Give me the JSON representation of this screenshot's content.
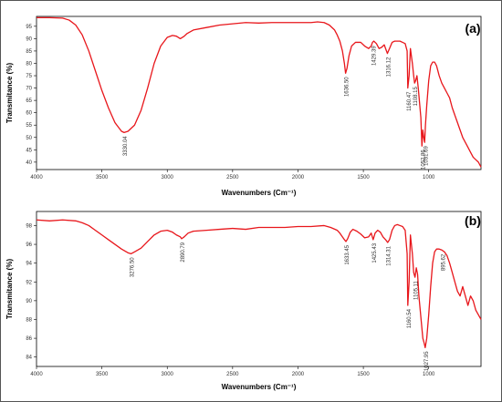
{
  "chart_data": [
    {
      "type": "line",
      "panel_label": "(a)",
      "xlabel": "Wavenumbers (Cm⁻¹)",
      "ylabel": "Transmitance (%)",
      "xlim": [
        4000,
        600
      ],
      "x_reversed": true,
      "ylim": [
        37,
        99
      ],
      "x_ticks": [
        4000,
        3500,
        3000,
        2500,
        2000,
        1500,
        1000
      ],
      "y_ticks": [
        40,
        45,
        50,
        55,
        60,
        65,
        70,
        75,
        80,
        85,
        90,
        95
      ],
      "grid": false,
      "color": "#e8161b",
      "series": [
        {
          "x": [
            4000,
            3900,
            3800,
            3750,
            3700,
            3650,
            3600,
            3550,
            3500,
            3450,
            3400,
            3350,
            3330,
            3300,
            3250,
            3200,
            3150,
            3100,
            3050,
            3000,
            2960,
            2930,
            2900,
            2870,
            2850,
            2800,
            2700,
            2600,
            2500,
            2400,
            2300,
            2200,
            2100,
            2000,
            1900,
            1850,
            1800,
            1760,
            1720,
            1700,
            1680,
            1660,
            1645,
            1636,
            1625,
            1610,
            1590,
            1560,
            1520,
            1490,
            1460,
            1440,
            1430,
            1420,
            1400,
            1380,
            1360,
            1340,
            1330,
            1316,
            1300,
            1280,
            1260,
            1240,
            1220,
            1200,
            1180,
            1165,
            1160,
            1150,
            1140,
            1125,
            1115,
            1108,
            1100,
            1090,
            1080,
            1070,
            1060,
            1052,
            1045,
            1038,
            1031,
            1025,
            1015,
            1000,
            985,
            970,
            955,
            940,
            920,
            900,
            880,
            860,
            840,
            820,
            800,
            780,
            760,
            740,
            720,
            700,
            680,
            660,
            640,
            620,
            600
          ],
          "y": [
            98.5,
            98.5,
            98.3,
            97.5,
            95.5,
            91.5,
            85,
            77,
            69,
            62,
            56,
            52.5,
            52,
            52.5,
            55,
            61,
            70,
            80,
            87,
            90.5,
            91.3,
            91,
            90,
            91,
            92,
            93.5,
            94.5,
            95.5,
            96,
            96.5,
            96.3,
            96.5,
            96.5,
            96.5,
            96.5,
            96.8,
            96.5,
            95.5,
            93.5,
            91.5,
            89,
            85,
            80,
            76,
            78,
            83,
            87,
            88.5,
            88.5,
            87,
            86,
            87,
            88.5,
            89,
            88,
            86,
            86.5,
            87.5,
            86,
            84,
            86,
            88.5,
            89,
            89,
            89,
            88.5,
            88,
            85,
            70,
            75,
            86,
            80,
            75,
            72,
            73,
            75,
            70,
            64,
            58,
            46.5,
            53,
            50,
            48,
            55,
            63,
            73,
            79,
            80.5,
            80.5,
            79,
            75,
            72,
            70,
            68,
            66,
            62,
            59,
            56,
            53,
            50,
            48,
            46,
            44,
            42,
            41,
            40,
            38
          ]
        }
      ],
      "annotations": [
        {
          "text": "3330.04",
          "x": 3330
        },
        {
          "text": "1636.50",
          "x": 1636
        },
        {
          "text": "1429.39",
          "x": 1429
        },
        {
          "text": "1316.12",
          "x": 1316
        },
        {
          "text": "1160.47",
          "x": 1160
        },
        {
          "text": "1108.15",
          "x": 1108
        },
        {
          "text": "1052.86",
          "x": 1052
        },
        {
          "text": "1031.69",
          "x": 1031
        }
      ]
    },
    {
      "type": "line",
      "panel_label": "(b)",
      "xlabel": "Wavenumbers (Cm⁻¹)",
      "ylabel": "Transmitance (%)",
      "xlim": [
        4000,
        600
      ],
      "x_reversed": true,
      "ylim": [
        83,
        99.5
      ],
      "x_ticks": [
        4000,
        3500,
        3000,
        2500,
        2000,
        1500,
        1000
      ],
      "y_ticks": [
        84,
        86,
        88,
        90,
        92,
        94,
        96,
        98
      ],
      "grid": false,
      "color": "#e8161b",
      "series": [
        {
          "x": [
            4000,
            3900,
            3800,
            3700,
            3650,
            3600,
            3550,
            3500,
            3450,
            3400,
            3350,
            3300,
            3276,
            3250,
            3200,
            3150,
            3100,
            3050,
            3000,
            2960,
            2930,
            2900,
            2890,
            2870,
            2840,
            2800,
            2700,
            2600,
            2500,
            2400,
            2300,
            2200,
            2100,
            2000,
            1900,
            1800,
            1750,
            1700,
            1680,
            1660,
            1645,
            1633,
            1620,
            1600,
            1580,
            1550,
            1520,
            1490,
            1460,
            1440,
            1425,
            1410,
            1390,
            1370,
            1350,
            1330,
            1314,
            1300,
            1280,
            1260,
            1240,
            1220,
            1200,
            1180,
            1165,
            1160,
            1150,
            1140,
            1125,
            1115,
            1105,
            1095,
            1085,
            1075,
            1065,
            1055,
            1045,
            1035,
            1027,
            1015,
            1000,
            985,
            970,
            955,
            940,
            920,
            900,
            880,
            860,
            840,
            820,
            800,
            780,
            760,
            740,
            720,
            700,
            680,
            660,
            640,
            620,
            600
          ],
          "y": [
            98.6,
            98.5,
            98.6,
            98.5,
            98.3,
            98,
            97.5,
            97,
            96.5,
            96,
            95.5,
            95.1,
            95,
            95.2,
            95.6,
            96.3,
            97,
            97.4,
            97.5,
            97.3,
            97,
            96.8,
            96.6,
            96.8,
            97.2,
            97.4,
            97.5,
            97.6,
            97.7,
            97.6,
            97.8,
            97.8,
            97.8,
            97.9,
            97.9,
            98,
            97.8,
            97.5,
            97.2,
            96.8,
            96.5,
            96.3,
            96.6,
            97.3,
            97.6,
            97.4,
            97.1,
            96.7,
            96.8,
            97.2,
            96.5,
            97.2,
            97.5,
            97.3,
            96.8,
            96.5,
            96.2,
            96.5,
            97.5,
            98,
            98.1,
            98,
            97.9,
            97.5,
            95,
            89.5,
            92,
            97,
            95,
            93,
            92.5,
            93.5,
            92.8,
            90.5,
            89,
            87.5,
            86,
            85.5,
            85,
            86,
            88.5,
            91.5,
            94,
            95.2,
            95.5,
            95.5,
            95.4,
            95.2,
            94.8,
            94,
            93,
            92,
            91,
            90.5,
            91.5,
            90.5,
            89.5,
            90.5,
            90,
            89,
            88.5,
            88
          ]
        }
      ],
      "annotations": [
        {
          "text": "3276.50",
          "x": 3276
        },
        {
          "text": "2890.79",
          "x": 2890
        },
        {
          "text": "1633.45",
          "x": 1633
        },
        {
          "text": "1425.43",
          "x": 1425
        },
        {
          "text": "1314.31",
          "x": 1314
        },
        {
          "text": "1160.54",
          "x": 1160
        },
        {
          "text": "1105.11",
          "x": 1105
        },
        {
          "text": "1027.95",
          "x": 1027
        },
        {
          "text": "895.62",
          "x": 895
        }
      ]
    }
  ]
}
